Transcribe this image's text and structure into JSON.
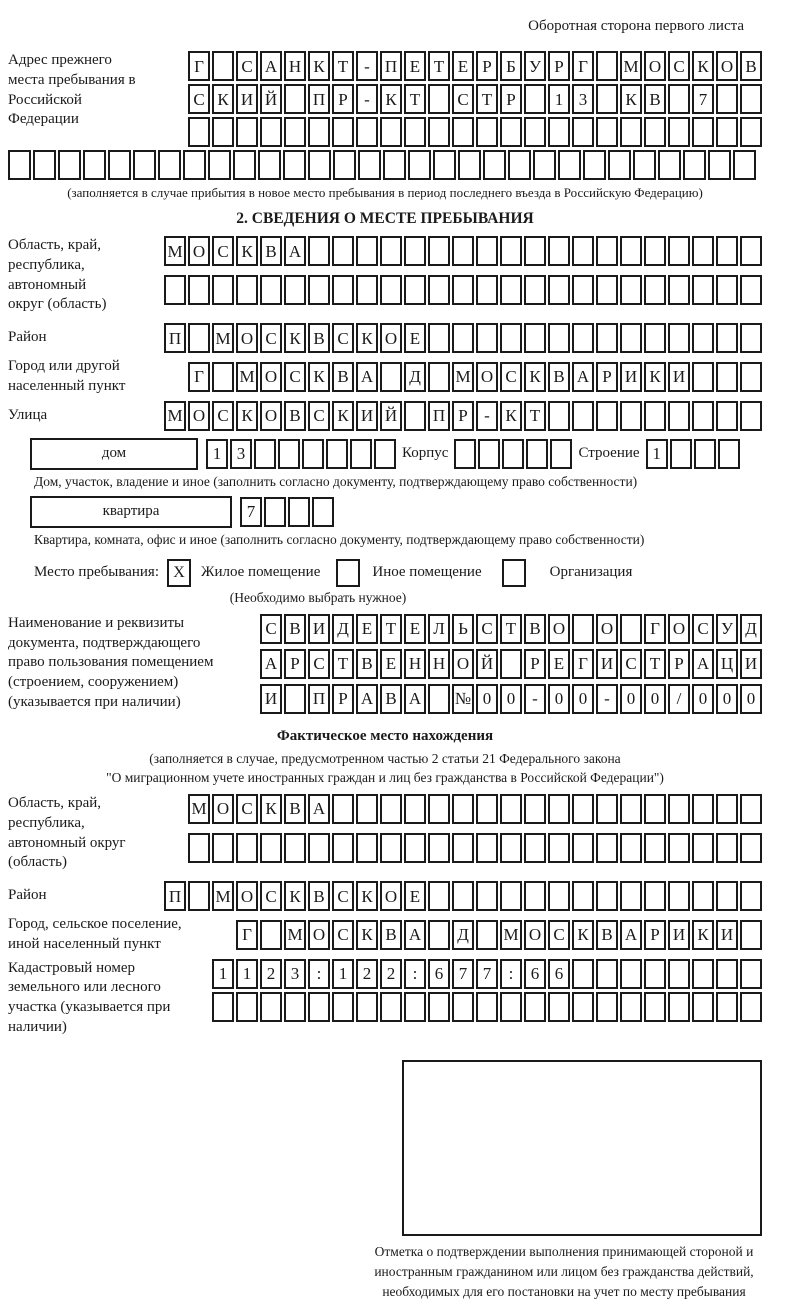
{
  "ink_color": "#1a1a1a",
  "page_header": "Оборотная сторона первого листа",
  "prev_address": {
    "label": "Адрес прежнего места пребывания в Российской Федерации",
    "rows": [
      {
        "text": "Г САНКТ-ПЕТЕРБУРГ МОСКОВ",
        "count": 24
      },
      {
        "text": "СКИЙ ПР-КТ СТР 13 КВ 7",
        "count": 24
      },
      {
        "text": "",
        "count": 24
      },
      {
        "text": "",
        "count": 30
      }
    ],
    "note": "(заполняется в случае прибытия в новое место пребывания в период последнего въезда в Российскую Федерацию)"
  },
  "section2": {
    "title": "2. СВЕДЕНИЯ О МЕСТЕ ПРЕБЫВАНИЯ",
    "region": {
      "label": "Область, край, республика, автономный округ (область)",
      "rows": [
        {
          "text": "МОСКВА",
          "count": 25
        },
        {
          "text": "",
          "count": 25
        }
      ]
    },
    "district": {
      "label": "Район",
      "row": {
        "text": "П МОСКВСКОЕ",
        "count": 25
      }
    },
    "city": {
      "label": "Город или другой населенный пункт",
      "row": {
        "text": "Г МОСКВА Д МОСКВАРИКИ",
        "count": 24
      }
    },
    "street": {
      "label": "Улица",
      "row": {
        "text": "МОСКОВСКИЙ ПР-КТ",
        "count": 25
      }
    },
    "house": {
      "box_label": "дом",
      "house_cells": {
        "text": "13",
        "count": 8
      },
      "korpus_label": "Корпус",
      "korpus_cells": {
        "text": "",
        "count": 5
      },
      "stroenie_label": "Строение",
      "stroenie_cells": {
        "text": "1",
        "count": 4
      },
      "note": "Дом, участок, владение и иное (заполнить согласно документу, подтверждающему право собственности)"
    },
    "apartment": {
      "box_label": "квартира",
      "cells": {
        "text": "7",
        "count": 4
      },
      "note": "Квартира, комната, офис и иное (заполнить согласно документу, подтверждающему право собственности)"
    },
    "stay_type": {
      "label": "Место пребывания:",
      "checkbox1": "X",
      "option1": "Жилое помещение",
      "checkbox2": "",
      "option2": "Иное помещение",
      "checkbox3": "",
      "option3": "Организация",
      "note": "(Необходимо выбрать нужное)"
    },
    "document": {
      "label": "Наименование и реквизиты документа, подтверждающего право пользования помещением (строением, сооружением) (указывается при наличии)",
      "rows": [
        {
          "text": "СВИДЕТЕЛЬСТВО О ГОСУД",
          "count": 21
        },
        {
          "text": "АРСТВЕННОЙ РЕГИСТРАЦИ",
          "count": 21
        },
        {
          "text": "И ПРАВА №00-00-00/000",
          "count": 21
        }
      ]
    }
  },
  "actual_location": {
    "title": "Фактическое место нахождения",
    "note_line1": "(заполняется в случае, предусмотренном частью 2 статьи 21 Федерального закона",
    "note_line2": "\"О миграционном учете иностранных граждан и лиц без гражданства в Российской Федерации\")",
    "region": {
      "label": "Область, край, республика, автономный округ (область)",
      "rows": [
        {
          "text": "МОСКВА",
          "count": 24
        },
        {
          "text": "",
          "count": 24
        }
      ]
    },
    "district": {
      "label": "Район",
      "row": {
        "text": "П МОСКВСКОЕ",
        "count": 25
      }
    },
    "city": {
      "label": "Город, сельское поселение, иной населенный пункт",
      "row": {
        "text": "Г МОСКВА Д МОСКВАРИКИ",
        "count": 22
      }
    },
    "cadastral": {
      "label": "Кадастровый номер земельного или лесного участка (указывается при наличии)",
      "rows": [
        {
          "text": "1123:122:677:66",
          "count": 23
        },
        {
          "text": "",
          "count": 23
        }
      ]
    },
    "stamp_caption": "Отметка о подтверждении выполнения принимающей стороной и иностранным гражданином или лицом без гражданства действий, необходимых для его постановки на учет по месту пребывания"
  }
}
